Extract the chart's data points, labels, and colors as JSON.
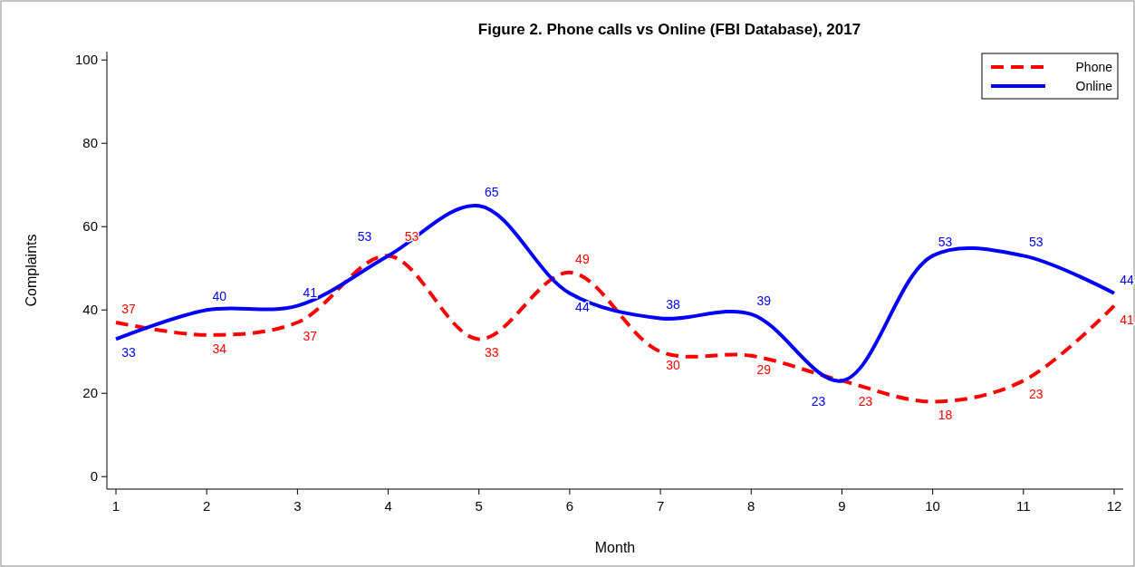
{
  "chart_data": {
    "type": "line",
    "title": "Figure 2. Phone calls vs Online (FBI Database), 2017",
    "xlabel": "Month",
    "ylabel": "Complaints",
    "x": [
      1,
      2,
      3,
      4,
      5,
      6,
      7,
      8,
      9,
      10,
      11,
      12
    ],
    "xlim": [
      0.9,
      12.1
    ],
    "xticks": [
      1,
      2,
      3,
      4,
      5,
      6,
      7,
      8,
      9,
      10,
      11,
      12
    ],
    "ylim": [
      -3,
      102
    ],
    "yticks": [
      0,
      20,
      40,
      60,
      80,
      100
    ],
    "series": [
      {
        "name": "Phone",
        "color": "#ff0000",
        "line_style": "dashed",
        "values": [
          37,
          34,
          37,
          53,
          33,
          49,
          30,
          29,
          23,
          18,
          23,
          41
        ]
      },
      {
        "name": "Online",
        "color": "#0000ff",
        "line_style": "solid",
        "values": [
          33,
          40,
          41,
          53,
          65,
          44,
          38,
          39,
          23,
          53,
          53,
          44
        ]
      }
    ],
    "data_labels": true,
    "legend": "top right",
    "grid": false,
    "marker": "none"
  }
}
